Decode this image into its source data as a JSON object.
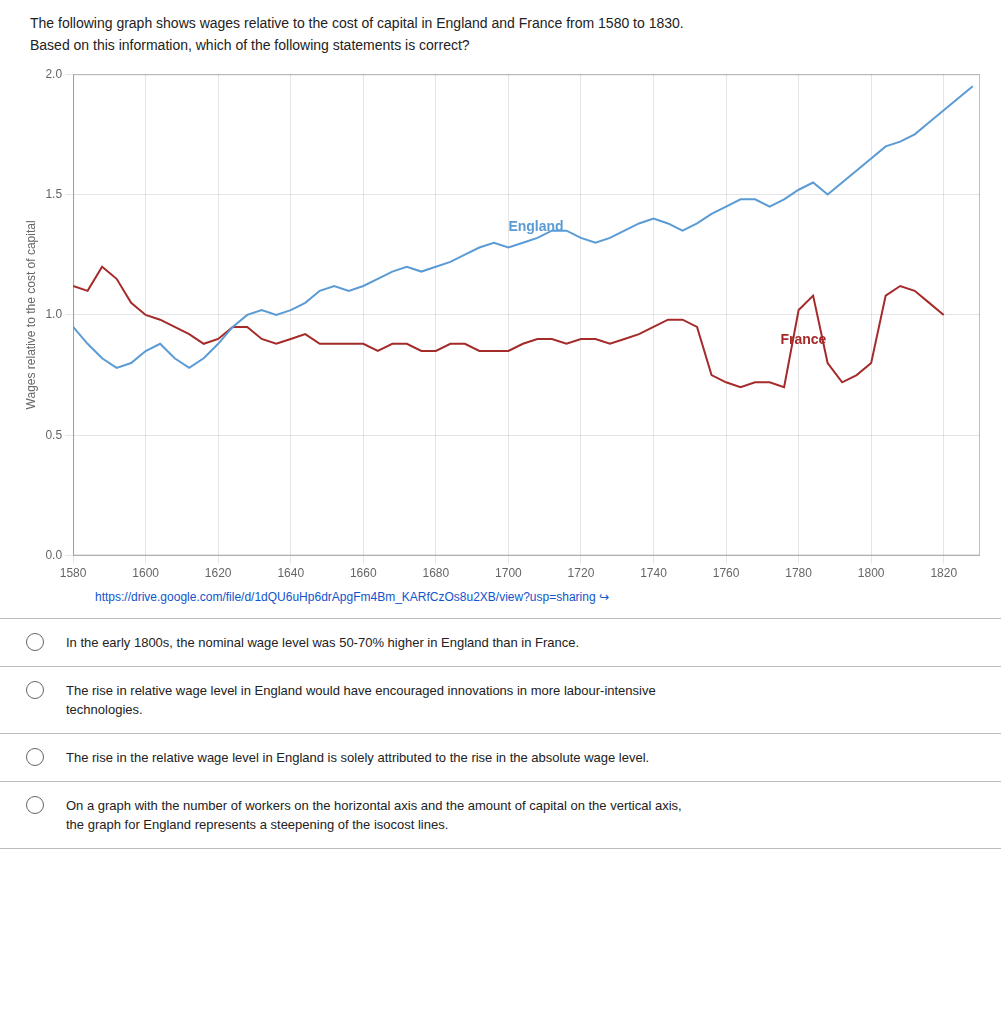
{
  "chart_data": {
    "type": "line",
    "title": "The following graph shows wages relative to the cost of capital in England and France from 1580 to 1830.",
    "subtitle": "Based on this information, which of the following statements is correct?",
    "ylabel": "Wages relative to the cost of capital",
    "xlim": [
      1580,
      1830
    ],
    "xticks": [
      1580,
      1600,
      1620,
      1640,
      1660,
      1680,
      1700,
      1720,
      1740,
      1760,
      1780,
      1800,
      1820
    ],
    "ylim": [
      0.0,
      2.0
    ],
    "yticks": [
      {
        "value": 0.0,
        "label": "0.0"
      },
      0.5,
      {
        "value": 1.0,
        "label": "1.0"
      },
      1.5,
      {
        "value": 2.0,
        "label": "2.0"
      }
    ],
    "grid": true,
    "series": [
      {
        "name": "England",
        "color": "#5B9BD5",
        "x": [
          1580,
          1584,
          1588,
          1592,
          1596,
          1600,
          1604,
          1608,
          1612,
          1616,
          1620,
          1624,
          1628,
          1632,
          1636,
          1640,
          1644,
          1648,
          1652,
          1656,
          1660,
          1664,
          1668,
          1672,
          1676,
          1680,
          1684,
          1688,
          1692,
          1696,
          1700,
          1704,
          1708,
          1712,
          1716,
          1720,
          1724,
          1728,
          1732,
          1736,
          1740,
          1744,
          1748,
          1752,
          1756,
          1760,
          1764,
          1768,
          1772,
          1776,
          1780,
          1784,
          1788,
          1792,
          1796,
          1800,
          1804,
          1808,
          1812,
          1816,
          1820,
          1824,
          1828
        ],
        "values": [
          0.95,
          0.88,
          0.82,
          0.78,
          0.8,
          0.85,
          0.88,
          0.82,
          0.78,
          0.82,
          0.88,
          0.95,
          1.0,
          1.02,
          1.0,
          1.02,
          1.05,
          1.1,
          1.12,
          1.1,
          1.12,
          1.15,
          1.18,
          1.2,
          1.18,
          1.2,
          1.22,
          1.25,
          1.28,
          1.3,
          1.28,
          1.3,
          1.32,
          1.35,
          1.35,
          1.32,
          1.3,
          1.32,
          1.35,
          1.38,
          1.4,
          1.38,
          1.35,
          1.38,
          1.42,
          1.45,
          1.48,
          1.48,
          1.45,
          1.48,
          1.52,
          1.55,
          1.5,
          1.55,
          1.6,
          1.65,
          1.7,
          1.72,
          1.75,
          1.8,
          1.85,
          1.9,
          1.95
        ]
      },
      {
        "name": "France",
        "color": "#A52A2A",
        "x": [
          1580,
          1584,
          1588,
          1592,
          1596,
          1600,
          1604,
          1608,
          1612,
          1616,
          1620,
          1624,
          1628,
          1632,
          1636,
          1640,
          1644,
          1648,
          1652,
          1656,
          1660,
          1664,
          1668,
          1672,
          1676,
          1680,
          1684,
          1688,
          1692,
          1696,
          1700,
          1704,
          1708,
          1712,
          1716,
          1720,
          1724,
          1728,
          1732,
          1736,
          1740,
          1744,
          1748,
          1752,
          1756,
          1760,
          1764,
          1768,
          1772,
          1776,
          1780,
          1784,
          1788,
          1792,
          1796,
          1800,
          1804,
          1808,
          1812,
          1816,
          1820
        ],
        "values": [
          1.12,
          1.1,
          1.2,
          1.15,
          1.05,
          1.0,
          0.98,
          0.95,
          0.92,
          0.88,
          0.9,
          0.95,
          0.95,
          0.9,
          0.88,
          0.9,
          0.92,
          0.88,
          0.88,
          0.88,
          0.88,
          0.85,
          0.88,
          0.88,
          0.85,
          0.85,
          0.88,
          0.88,
          0.85,
          0.85,
          0.85,
          0.88,
          0.9,
          0.9,
          0.88,
          0.9,
          0.9,
          0.88,
          0.9,
          0.92,
          0.95,
          0.98,
          0.98,
          0.95,
          0.75,
          0.72,
          0.7,
          0.72,
          0.72,
          0.7,
          1.02,
          1.08,
          0.8,
          0.72,
          0.75,
          0.8,
          1.08,
          1.12,
          1.1,
          1.05,
          1.0
        ]
      }
    ],
    "annotations": [
      {
        "text": "England",
        "x": 1700,
        "y": 1.35,
        "color": "#5B9BD5"
      },
      {
        "text": "France",
        "x": 1775,
        "y": 0.88,
        "color": "#A52A2A"
      }
    ],
    "source_link": "https://drive.google.com/file/d/1dQU6uHp6drApgFm4Bm_KARfCzOs8u2XB/view?usp=sharing ↪",
    "choices": [
      "In the early 1800s, the nominal wage level was 50-70% higher in England than in France.",
      "The rise in relative wage level in England would have encouraged innovations in more labour-intensive\ntechnologies.",
      "The rise in the relative wage level in England is solely attributed to the rise in the absolute wage level.",
      "On a graph with the number of workers on the horizontal axis and the amount of capital on the vertical axis,\nthe graph for England represents a steepening of the isocost lines."
    ]
  }
}
